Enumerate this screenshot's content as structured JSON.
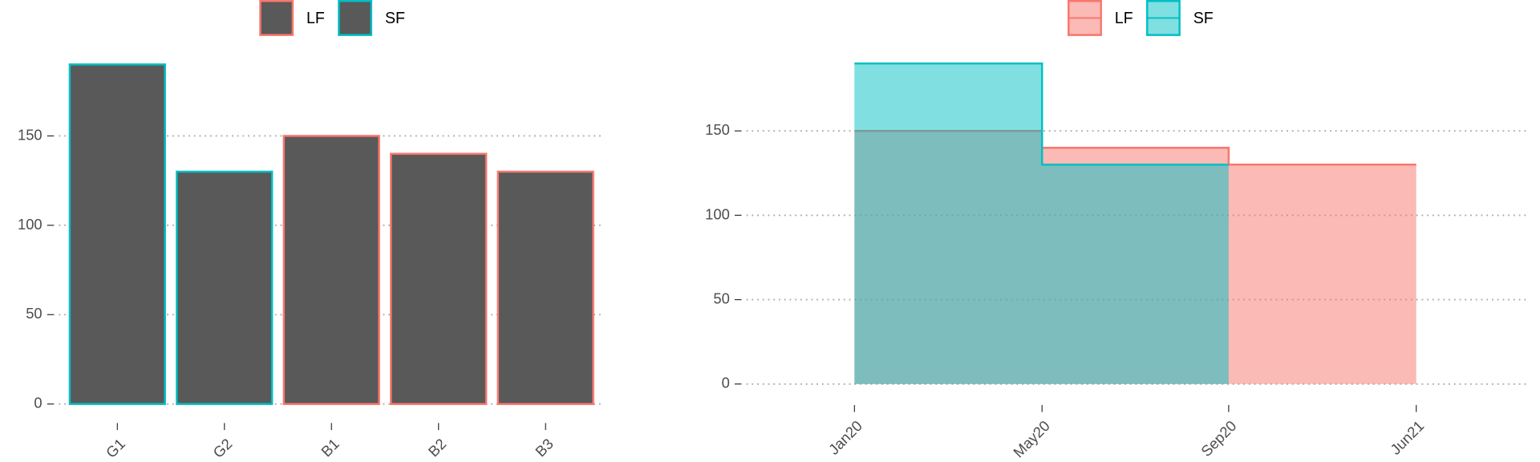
{
  "chart_data": [
    {
      "type": "bar",
      "categories": [
        "G1",
        "G2",
        "B1",
        "B2",
        "B3"
      ],
      "series": [
        {
          "name": "LF",
          "color": "#F8766D",
          "values": [
            null,
            null,
            150,
            140,
            130
          ]
        },
        {
          "name": "SF",
          "color": "#00BFC4",
          "values": [
            190,
            130,
            null,
            null,
            null
          ]
        }
      ],
      "fill": "#595959",
      "ylim": [
        0,
        195
      ],
      "yticks": [
        0,
        50,
        100,
        150
      ],
      "grid": true,
      "legend": "top"
    },
    {
      "type": "step_area",
      "categories": [
        "Jan20",
        "May20",
        "Sep20",
        "Jun21"
      ],
      "series": [
        {
          "name": "LF",
          "color": "#F8766D",
          "values": [
            150,
            140,
            130,
            130
          ]
        },
        {
          "name": "SF",
          "color": "#00BFC4",
          "values": [
            190,
            130,
            130,
            null
          ]
        }
      ],
      "ylim": [
        0,
        195
      ],
      "yticks": [
        0,
        50,
        100,
        150
      ],
      "grid": true,
      "legend": "top"
    }
  ]
}
